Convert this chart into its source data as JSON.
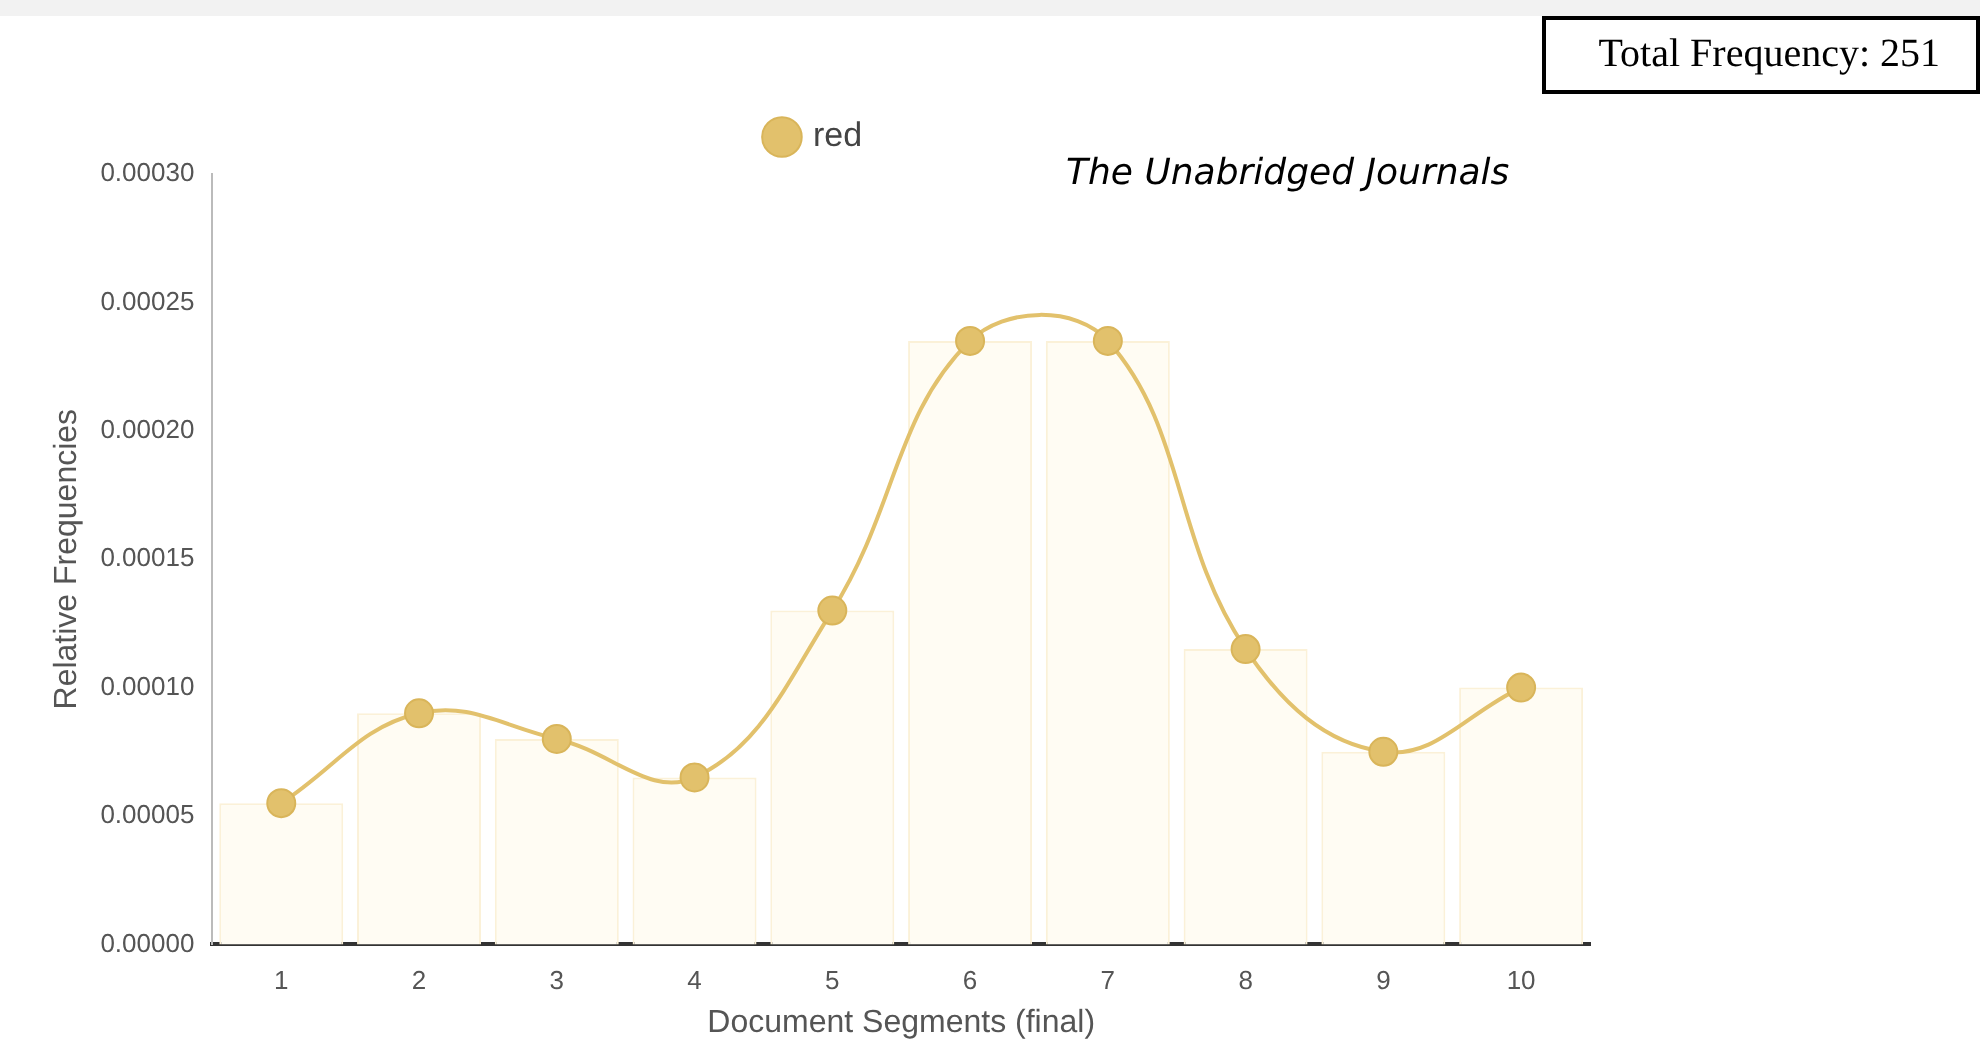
{
  "chart_data": {
    "type": "line",
    "subtitle": "The Unabridged Journals",
    "xlabel": "Document Segments (final)",
    "ylabel": "Relative Frequencies",
    "annotations": [
      "Total Frequency: 251"
    ],
    "categories": [
      "1",
      "2",
      "3",
      "4",
      "5",
      "6",
      "7",
      "8",
      "9",
      "10"
    ],
    "series": [
      {
        "type": "bar",
        "color": "#fffcf3",
        "values": [
          5.5e-05,
          9e-05,
          8e-05,
          6.5e-05,
          0.00013,
          0.000235,
          0.000235,
          0.000115,
          7.5e-05,
          0.0001
        ]
      },
      {
        "name": "red",
        "color": "#e2c16c",
        "values": [
          5.5e-05,
          9e-05,
          8e-05,
          6.5e-05,
          0.00013,
          0.000235,
          0.000235,
          0.000115,
          7.5e-05,
          0.0001
        ]
      }
    ],
    "ylim": [
      0,
      0.0003
    ],
    "yticks": [
      {
        "value": 0,
        "label": "0.00000"
      },
      {
        "value": 5e-05,
        "label": "0.00005"
      },
      {
        "value": 0.0001,
        "label": "0.00010"
      },
      {
        "value": 0.00015,
        "label": "0.00015"
      },
      {
        "value": 0.0002,
        "label": "0.00020"
      },
      {
        "value": 0.00025,
        "label": "0.00025"
      },
      {
        "value": 0.0003,
        "label": "0.00030"
      }
    ],
    "grid": false,
    "legend": "top",
    "marker": "circle",
    "line_style": "solid"
  }
}
